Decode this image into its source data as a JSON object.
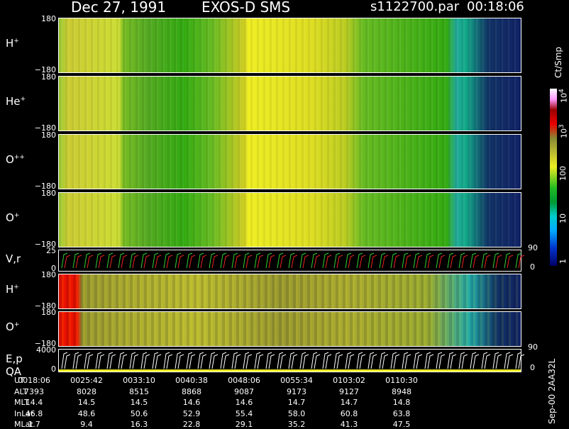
{
  "header": {
    "date": "Dec 27, 1991",
    "instrument": "EXOS-D SMS",
    "file": "s1122700.par",
    "time": "00:18:06"
  },
  "panels": [
    {
      "label": {
        "ion": "H",
        "charge": "+"
      },
      "top": "180",
      "bottom": "−180"
    },
    {
      "label": {
        "ion": "He",
        "charge": "+"
      },
      "top": "180",
      "bottom": "−180"
    },
    {
      "label": {
        "ion": "O",
        "charge": "++"
      },
      "top": "180",
      "bottom": "−180"
    },
    {
      "label": {
        "ion": "O",
        "charge": "+"
      },
      "top": "180",
      "bottom": "−180"
    },
    {
      "label": {
        "ion": "V,r"
      },
      "top": "25",
      "bottom": "0",
      "right_top": "90",
      "right_bottom": "0"
    },
    {
      "label": {
        "ion": "H",
        "charge": "+"
      },
      "top": "180",
      "bottom": "−180"
    },
    {
      "label": {
        "ion": "O",
        "charge": "+"
      },
      "top": "180",
      "bottom": "−180"
    },
    {
      "label": {
        "ion": "E,p",
        "line2": "QA"
      },
      "top": "4000",
      "bottom": "0",
      "right_top": "90",
      "right_bottom": "0"
    }
  ],
  "colorbar": {
    "unit": "Ct/Smp",
    "ticks": [
      {
        "base": "10",
        "exp": "4"
      },
      {
        "base": "10",
        "exp": "3"
      },
      {
        "base": "100"
      },
      {
        "base": "10"
      },
      {
        "base": "1"
      }
    ]
  },
  "footer": {
    "stamp": "Sep-00  2AA32L"
  },
  "table": {
    "rows": [
      {
        "label": "UT",
        "values": [
          "0018:06",
          "0025:42",
          "0033:10",
          "0040:38",
          "0048:06",
          "0055:34",
          "0103:02",
          "0110:30"
        ]
      },
      {
        "label": "ALT",
        "values": [
          "7393",
          "8028",
          "8515",
          "8868",
          "9087",
          "9173",
          "9127",
          "8948"
        ]
      },
      {
        "label": "MLT",
        "values": [
          "14.4",
          "14.5",
          "14.5",
          "14.6",
          "14.6",
          "14.7",
          "14.7",
          "14.8"
        ]
      },
      {
        "label": "InLat",
        "values": [
          "46.8",
          "48.6",
          "50.6",
          "52.9",
          "55.4",
          "58.0",
          "60.8",
          "63.8"
        ]
      },
      {
        "label": "MLat",
        "values": [
          "1.7",
          "9.4",
          "16.3",
          "22.8",
          "29.1",
          "35.2",
          "41.3",
          "47.5"
        ]
      }
    ]
  }
}
